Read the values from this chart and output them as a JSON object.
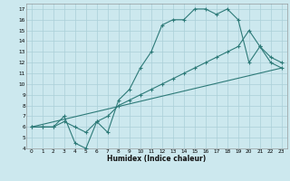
{
  "xlabel": "Humidex (Indice chaleur)",
  "bg_color": "#cce8ee",
  "grid_color": "#aacfd8",
  "line_color": "#2d7a78",
  "line1_x": [
    0,
    1,
    2,
    3,
    4,
    5,
    6,
    7,
    8,
    9,
    10,
    11,
    12,
    13,
    14,
    15,
    16,
    17,
    18,
    19,
    20,
    21,
    22,
    23
  ],
  "line1_y": [
    6,
    6,
    6,
    7,
    4.5,
    4,
    6.5,
    5.5,
    8.5,
    9.5,
    11.5,
    13,
    15.5,
    16,
    16,
    17,
    17,
    16.5,
    17,
    16,
    12,
    13.5,
    12,
    11.5
  ],
  "line2_x": [
    0,
    1,
    2,
    3,
    4,
    5,
    6,
    7,
    8,
    9,
    10,
    11,
    12,
    13,
    14,
    15,
    16,
    17,
    18,
    19,
    20,
    21,
    22,
    23
  ],
  "line2_y": [
    6,
    6,
    6,
    6.5,
    6,
    5.5,
    6.5,
    7,
    8,
    8.5,
    9,
    9.5,
    10,
    10.5,
    11,
    11.5,
    12,
    12.5,
    13,
    13.5,
    15,
    13.5,
    12.5,
    12
  ],
  "line3_x": [
    0,
    23
  ],
  "line3_y": [
    6,
    11.5
  ],
  "xlim": [
    -0.5,
    23.5
  ],
  "ylim": [
    4,
    17.5
  ],
  "yticks": [
    4,
    5,
    6,
    7,
    8,
    9,
    10,
    11,
    12,
    13,
    14,
    15,
    16,
    17
  ],
  "xticks": [
    0,
    1,
    2,
    3,
    4,
    5,
    6,
    7,
    8,
    9,
    10,
    11,
    12,
    13,
    14,
    15,
    16,
    17,
    18,
    19,
    20,
    21,
    22,
    23
  ]
}
